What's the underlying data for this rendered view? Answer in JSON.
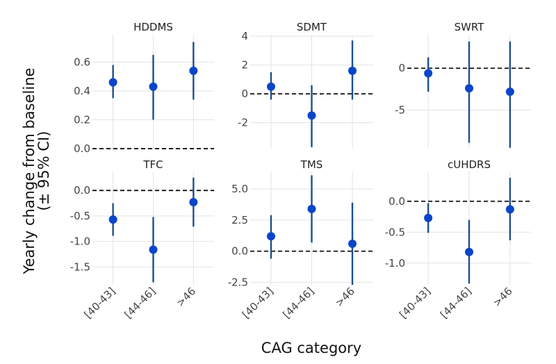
{
  "chart_data": {
    "type": "scatter",
    "subtype": "point-range facet grid",
    "xlabel": "CAG category",
    "ylabel_line1": "Yearly change from baseline",
    "ylabel_line2": "(± 95% CI)",
    "categories": [
      "[40-43]",
      "[44-46]",
      ">46"
    ],
    "reference_line": 0,
    "colors": {
      "point": "#0b45c9",
      "errorbar": "#1d4f8f",
      "reference": "#111111",
      "grid": "#e3e3e3"
    },
    "panels": [
      {
        "title": "HDDMS",
        "ylim": [
          -0.01,
          0.79
        ],
        "yticks": [
          0.0,
          0.2,
          0.4,
          0.6
        ],
        "yticklabels": [
          "0.0",
          "0.2",
          "0.4",
          "0.6"
        ],
        "show_xticklabels": false,
        "values": [
          0.46,
          0.43,
          0.54
        ],
        "lower": [
          0.35,
          0.2,
          0.34
        ],
        "upper": [
          0.58,
          0.65,
          0.74
        ]
      },
      {
        "title": "SDMT",
        "ylim": [
          -3.8,
          4.1
        ],
        "yticks": [
          -2,
          0,
          2,
          4
        ],
        "yticklabels": [
          "-2",
          "0",
          "2",
          "4"
        ],
        "show_xticklabels": false,
        "values": [
          0.5,
          -1.5,
          1.6
        ],
        "lower": [
          -0.4,
          -3.7,
          -0.4
        ],
        "upper": [
          1.5,
          0.6,
          3.7
        ]
      },
      {
        "title": "SWRT",
        "ylim": [
          -9.6,
          4.0
        ],
        "yticks": [
          -5,
          0
        ],
        "yticklabels": [
          "-5",
          "0"
        ],
        "show_xticklabels": false,
        "values": [
          -0.6,
          -2.4,
          -2.8
        ],
        "lower": [
          -2.8,
          -8.9,
          -9.5
        ],
        "upper": [
          1.3,
          3.2,
          3.2
        ]
      },
      {
        "title": "TFC",
        "ylim": [
          -1.85,
          0.37
        ],
        "yticks": [
          -1.5,
          -1.0,
          -0.5,
          0.0
        ],
        "yticklabels": [
          "-1.5",
          "-1.0",
          "-0.5",
          "0.0"
        ],
        "show_xticklabels": true,
        "values": [
          -0.57,
          -1.16,
          -0.23
        ],
        "lower": [
          -0.89,
          -1.8,
          -0.71
        ],
        "upper": [
          -0.25,
          -0.52,
          0.25
        ]
      },
      {
        "title": "TMS",
        "ylim": [
          -2.7,
          6.4
        ],
        "yticks": [
          -2.5,
          0.0,
          2.5,
          5.0
        ],
        "yticklabels": [
          "-2.5",
          "0.0",
          "2.5",
          "5.0"
        ],
        "show_xticklabels": true,
        "values": [
          1.2,
          3.4,
          0.6
        ],
        "lower": [
          -0.6,
          0.7,
          -2.7
        ],
        "upper": [
          2.9,
          6.1,
          3.9
        ]
      },
      {
        "title": "cUHDRS",
        "ylim": [
          -1.35,
          0.48
        ],
        "yticks": [
          -1.0,
          -0.5,
          0.0
        ],
        "yticklabels": [
          "-1.0",
          "-0.5",
          "0.0"
        ],
        "show_xticklabels": true,
        "values": [
          -0.27,
          -0.82,
          -0.13
        ],
        "lower": [
          -0.51,
          -1.33,
          -0.63
        ],
        "upper": [
          -0.03,
          -0.3,
          0.38
        ]
      }
    ]
  }
}
